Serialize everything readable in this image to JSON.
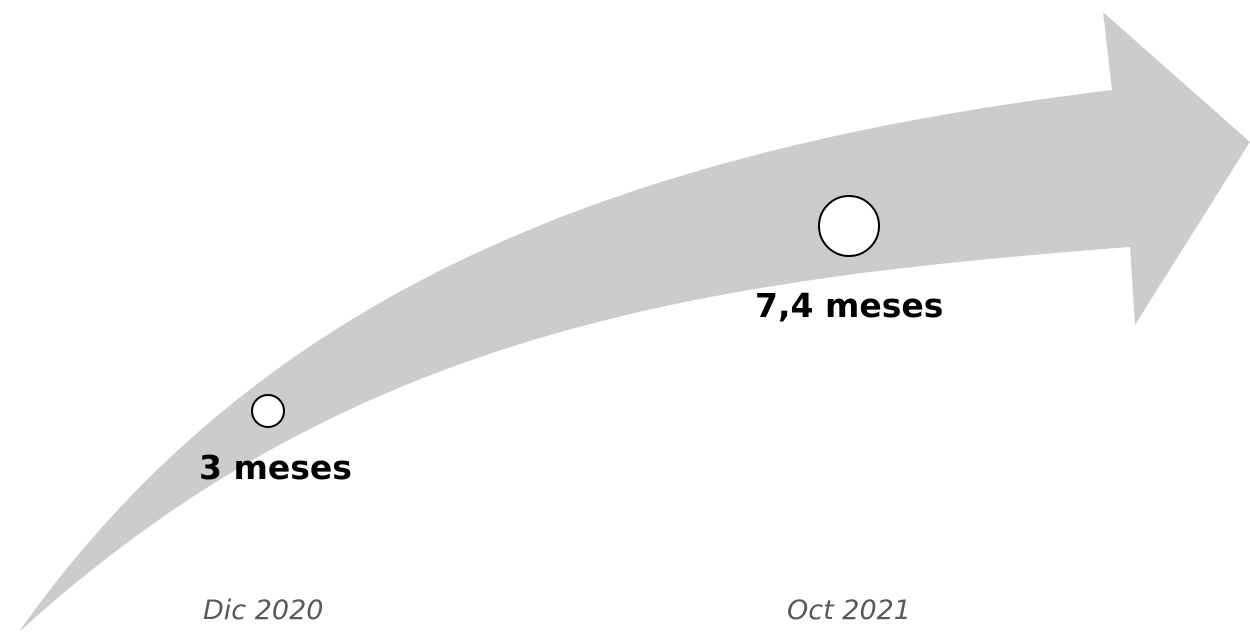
{
  "colors": {
    "arrow_fill": "#cccccc",
    "marker_fill": "#ffffff",
    "marker_stroke": "#000000",
    "value_text": "#000000",
    "date_text": "#595959"
  },
  "milestones": [
    {
      "value": "3 meses",
      "date": "Dic 2020",
      "months": 3
    },
    {
      "value": "7,4 meses",
      "date": "Oct 2021",
      "months": 7.4
    }
  ]
}
